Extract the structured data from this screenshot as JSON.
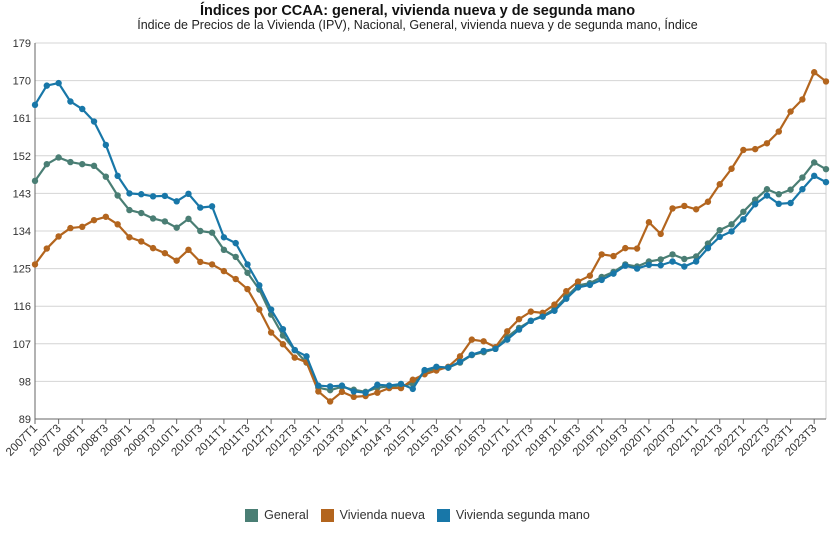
{
  "chart_data": {
    "type": "line",
    "title": "Índices por CCAA: general, vivienda nueva y de segunda mano",
    "subtitle": "Índice de Precios de la Vivienda (IPV), Nacional, General, vivienda nueva y de segunda mano, Índice",
    "xlabel": "",
    "ylabel": "",
    "ylim": [
      89,
      179
    ],
    "yticks": [
      89,
      98,
      107,
      116,
      125,
      134,
      143,
      152,
      161,
      170,
      179
    ],
    "grid": true,
    "legend_position": "bottom",
    "x": [
      "2007T1",
      "2007T2",
      "2007T3",
      "2007T4",
      "2008T1",
      "2008T2",
      "2008T3",
      "2008T4",
      "2009T1",
      "2009T2",
      "2009T3",
      "2009T4",
      "2010T1",
      "2010T2",
      "2010T3",
      "2010T4",
      "2011T1",
      "2011T2",
      "2011T3",
      "2011T4",
      "2012T1",
      "2012T2",
      "2012T3",
      "2012T4",
      "2013T1",
      "2013T2",
      "2013T3",
      "2013T4",
      "2014T1",
      "2014T2",
      "2014T3",
      "2014T4",
      "2015T1",
      "2015T2",
      "2015T3",
      "2015T4",
      "2016T1",
      "2016T2",
      "2016T3",
      "2016T4",
      "2017T1",
      "2017T2",
      "2017T3",
      "2017T4",
      "2018T1",
      "2018T2",
      "2018T3",
      "2018T4",
      "2019T1",
      "2019T2",
      "2019T3",
      "2019T4",
      "2020T1",
      "2020T2",
      "2020T3",
      "2020T4",
      "2021T1",
      "2021T2",
      "2021T3",
      "2021T4",
      "2022T1",
      "2022T2",
      "2022T3",
      "2022T4",
      "2023T1",
      "2023T2",
      "2023T3",
      "2023T4"
    ],
    "xtick_labels": [
      "2007T1",
      "2007T3",
      "2008T1",
      "2008T3",
      "2009T1",
      "2009T3",
      "2010T1",
      "2010T3",
      "2011T1",
      "2011T3",
      "2012T1",
      "2012T3",
      "2013T1",
      "2013T3",
      "2014T1",
      "2014T3",
      "2015T1",
      "2015T3",
      "2016T1",
      "2016T3",
      "2017T1",
      "2017T3",
      "2018T1",
      "2018T3",
      "2019T1",
      "2019T3",
      "2020T1",
      "2020T3",
      "2021T1",
      "2021T3",
      "2022T1",
      "2022T3",
      "2023T1",
      "2023T3"
    ],
    "series": [
      {
        "name": "General",
        "color": "#4a7e74",
        "values": [
          146.0,
          150.0,
          151.6,
          150.5,
          150.0,
          149.6,
          147.0,
          142.5,
          139.0,
          138.3,
          137.0,
          136.3,
          134.8,
          136.9,
          134.0,
          133.6,
          129.5,
          127.8,
          124.0,
          120.0,
          114.0,
          109.0,
          105.5,
          102.5,
          96.5,
          95.9,
          96.7,
          96.0,
          95.5,
          96.5,
          96.8,
          97.0,
          97.4,
          100.3,
          101.0,
          101.3,
          102.5,
          104.3,
          105.0,
          105.8,
          108.6,
          110.8,
          112.5,
          113.7,
          115.3,
          118.2,
          121.0,
          121.5,
          123.0,
          124.2,
          126.0,
          125.5,
          126.7,
          127.2,
          128.4,
          127.3,
          127.9,
          131.0,
          134.2,
          135.6,
          138.6,
          141.5,
          144.0,
          142.8,
          143.9,
          146.8,
          150.4,
          148.8
        ]
      },
      {
        "name": "Vivienda nueva",
        "color": "#b3651e",
        "values": [
          126.0,
          129.8,
          132.7,
          134.7,
          135.0,
          136.6,
          137.4,
          135.6,
          132.5,
          131.5,
          129.9,
          128.7,
          126.9,
          129.5,
          126.6,
          126.0,
          124.4,
          122.5,
          120.1,
          115.2,
          109.7,
          106.9,
          103.7,
          102.6,
          95.6,
          93.2,
          95.5,
          94.3,
          94.5,
          95.3,
          96.4,
          96.4,
          98.4,
          99.7,
          100.6,
          101.5,
          104.0,
          108.0,
          107.6,
          106.2,
          110.0,
          112.9,
          114.7,
          114.4,
          116.4,
          119.6,
          121.9,
          123.3,
          128.4,
          128.0,
          129.9,
          129.8,
          136.1,
          133.3,
          139.4,
          140.0,
          139.2,
          141.0,
          145.2,
          148.9,
          153.4,
          153.6,
          155.0,
          157.8,
          162.6,
          165.5,
          172.0,
          169.8
        ]
      },
      {
        "name": "Vivienda segunda mano",
        "color": "#1877a8",
        "values": [
          164.2,
          168.8,
          169.4,
          165.0,
          163.2,
          160.2,
          154.6,
          147.2,
          143.0,
          142.8,
          142.3,
          142.4,
          141.1,
          142.9,
          139.6,
          139.9,
          132.5,
          131.1,
          126.0,
          121.0,
          115.2,
          110.5,
          105.5,
          104.0,
          97.0,
          96.8,
          97.0,
          95.6,
          95.3,
          97.2,
          97.0,
          97.4,
          96.2,
          100.7,
          101.5,
          101.3,
          102.7,
          104.4,
          105.3,
          105.8,
          108.0,
          110.4,
          112.5,
          113.5,
          114.9,
          117.8,
          120.5,
          121.1,
          122.3,
          123.8,
          125.7,
          125.0,
          125.9,
          125.8,
          126.7,
          125.5,
          126.7,
          129.9,
          132.6,
          133.9,
          136.8,
          140.4,
          142.5,
          140.5,
          140.7,
          144.0,
          147.2,
          145.7
        ]
      }
    ]
  }
}
